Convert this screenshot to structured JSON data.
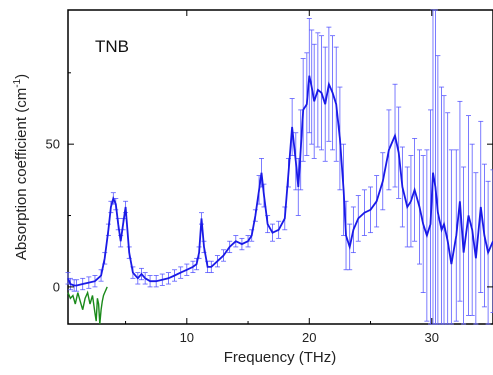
{
  "chart_data": {
    "type": "line",
    "title": "",
    "annotation": "TNB",
    "xlabel": "Frequency (THz)",
    "ylabel_main": "Absorption coefficient (cm",
    "ylabel_sup": "-1",
    "ylabel_close": ")",
    "xlim": [
      0.3,
      35
    ],
    "ylim": [
      -13,
      97
    ],
    "xticks": [
      10,
      20,
      30
    ],
    "xtick_labels": [
      "10",
      "20",
      "30"
    ],
    "yticks": [
      0,
      50
    ],
    "ytick_labels": [
      "0",
      "50"
    ],
    "grid": false,
    "legend": "none",
    "colors": {
      "main": "#1a1ae6",
      "error": "#5a5aff",
      "low": "#1a8a1a",
      "axis": "#000000"
    },
    "series": [
      {
        "color": "#1a1ae6",
        "x": [
          0.3,
          0.5,
          0.8,
          1.0,
          1.5,
          2.0,
          2.5,
          3.0,
          3.3,
          3.6,
          3.8,
          4.0,
          4.2,
          4.4,
          4.6,
          4.8,
          5.0,
          5.3,
          5.6,
          6.0,
          6.3,
          6.6,
          7.0,
          7.5,
          8.0,
          8.5,
          9.0,
          9.5,
          10.0,
          10.5,
          10.8,
          11.0,
          11.2,
          11.4,
          11.7,
          12.0,
          12.5,
          13.0,
          13.5,
          14.0,
          14.5,
          15.0,
          15.3,
          15.6,
          15.9,
          16.1,
          16.3,
          16.6,
          17.0,
          17.5,
          18.0,
          18.3,
          18.6,
          18.9,
          19.1,
          19.3,
          19.5,
          19.8,
          20.0,
          20.2,
          20.4,
          20.7,
          21.0,
          21.3,
          21.6,
          21.9,
          22.2,
          22.5,
          22.8,
          23.0,
          23.3,
          23.6,
          24.0,
          24.5,
          25.0,
          25.5,
          26.0,
          26.5,
          27.0,
          27.3,
          27.6,
          28.0,
          28.3,
          28.6,
          29.0,
          29.3,
          29.6,
          29.9,
          30.1,
          30.3,
          30.5,
          30.8,
          31.0,
          31.3,
          31.6,
          32.0,
          32.3,
          32.6,
          33.0,
          33.3,
          33.6,
          34.0,
          34.3,
          34.6,
          35.0
        ],
        "y": [
          3,
          1,
          0.5,
          0.5,
          1,
          1.5,
          2,
          4,
          10,
          20,
          28,
          31,
          29,
          22,
          16,
          22,
          28,
          12,
          5,
          3,
          4.5,
          3,
          2,
          2,
          2.5,
          3,
          4,
          5,
          6,
          7,
          8,
          12,
          24,
          14,
          7,
          7,
          9,
          11,
          14,
          16,
          15,
          16,
          18,
          25,
          34,
          40,
          32,
          22,
          19,
          20,
          24,
          40,
          56,
          44,
          35,
          48,
          62,
          64,
          74,
          70,
          65,
          69,
          68,
          64,
          71,
          68,
          64,
          52,
          34,
          18,
          14,
          20,
          24,
          26,
          27,
          30,
          37,
          48,
          53,
          47,
          35,
          28,
          30,
          34,
          28,
          22,
          18,
          22,
          40,
          35,
          26,
          20,
          22,
          16,
          8,
          18,
          30,
          12,
          25,
          20,
          10,
          28,
          18,
          12,
          16
        ]
      }
    ],
    "error_half_widths": [
      2,
      2,
      2,
      2,
      2,
      2,
      2,
      2,
      2,
      2,
      2,
      2,
      2,
      2,
      2,
      2,
      2,
      2,
      2,
      2,
      2,
      2,
      2,
      2,
      2,
      2,
      2,
      2,
      2,
      2,
      2,
      2,
      2,
      2,
      2,
      2,
      2,
      2,
      2,
      2,
      2,
      2,
      2,
      2,
      5,
      5,
      4,
      3,
      3,
      3,
      4,
      5,
      10,
      10,
      10,
      14,
      18,
      18,
      20,
      20,
      20,
      20,
      20,
      20,
      20,
      20,
      20,
      18,
      16,
      12,
      8,
      8,
      8,
      8,
      8,
      9,
      10,
      14,
      18,
      16,
      14,
      14,
      16,
      18,
      20,
      24,
      30,
      40,
      60,
      65,
      55,
      50,
      45,
      45,
      40,
      30,
      35,
      30,
      35,
      30,
      30,
      30,
      25,
      25,
      25
    ],
    "low_freq_series": {
      "color": "#1a8a1a",
      "x": [
        0.3,
        0.5,
        0.7,
        0.9,
        1.1,
        1.3,
        1.5,
        1.7,
        1.9,
        2.1,
        2.3,
        2.5,
        2.6,
        2.7,
        2.8,
        2.9,
        3.0,
        3.1,
        3.2,
        3.3,
        3.4,
        3.5
      ],
      "y": [
        -2,
        -4,
        -3,
        -6,
        -2,
        -5,
        -8,
        -4,
        -2,
        -6,
        -3,
        -9,
        -12,
        -4,
        -6,
        -15,
        -8,
        -5,
        -3,
        -2,
        -1,
        0
      ]
    }
  }
}
